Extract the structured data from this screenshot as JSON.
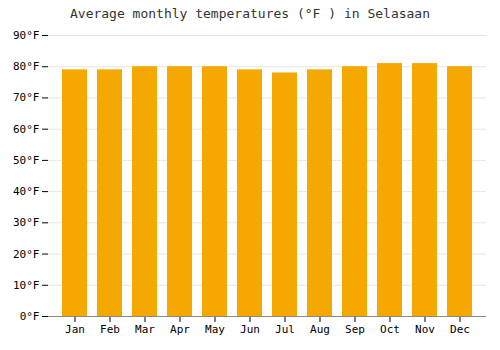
{
  "chart_data": {
    "type": "bar",
    "title": "Average monthly temperatures (°F ) in Selasaan",
    "categories": [
      "Jan",
      "Feb",
      "Mar",
      "Apr",
      "May",
      "Jun",
      "Jul",
      "Aug",
      "Sep",
      "Oct",
      "Nov",
      "Dec"
    ],
    "values": [
      79,
      79,
      80,
      80,
      80,
      79,
      78,
      79,
      80,
      81,
      81,
      80
    ],
    "color": "#F5A800",
    "ylim": [
      0,
      90
    ],
    "yticks": [
      {
        "value": 0,
        "label": "0°F"
      },
      {
        "value": 10,
        "label": "10°F"
      },
      {
        "value": 20,
        "label": "20°F"
      },
      {
        "value": 30,
        "label": "30°F"
      },
      {
        "value": 40,
        "label": "40°F"
      },
      {
        "value": 50,
        "label": "50°F"
      },
      {
        "value": 60,
        "label": "60°F"
      },
      {
        "value": 70,
        "label": "70°F"
      },
      {
        "value": 80,
        "label": "80°F"
      },
      {
        "value": 90,
        "label": "90°F"
      }
    ],
    "grid": true
  }
}
